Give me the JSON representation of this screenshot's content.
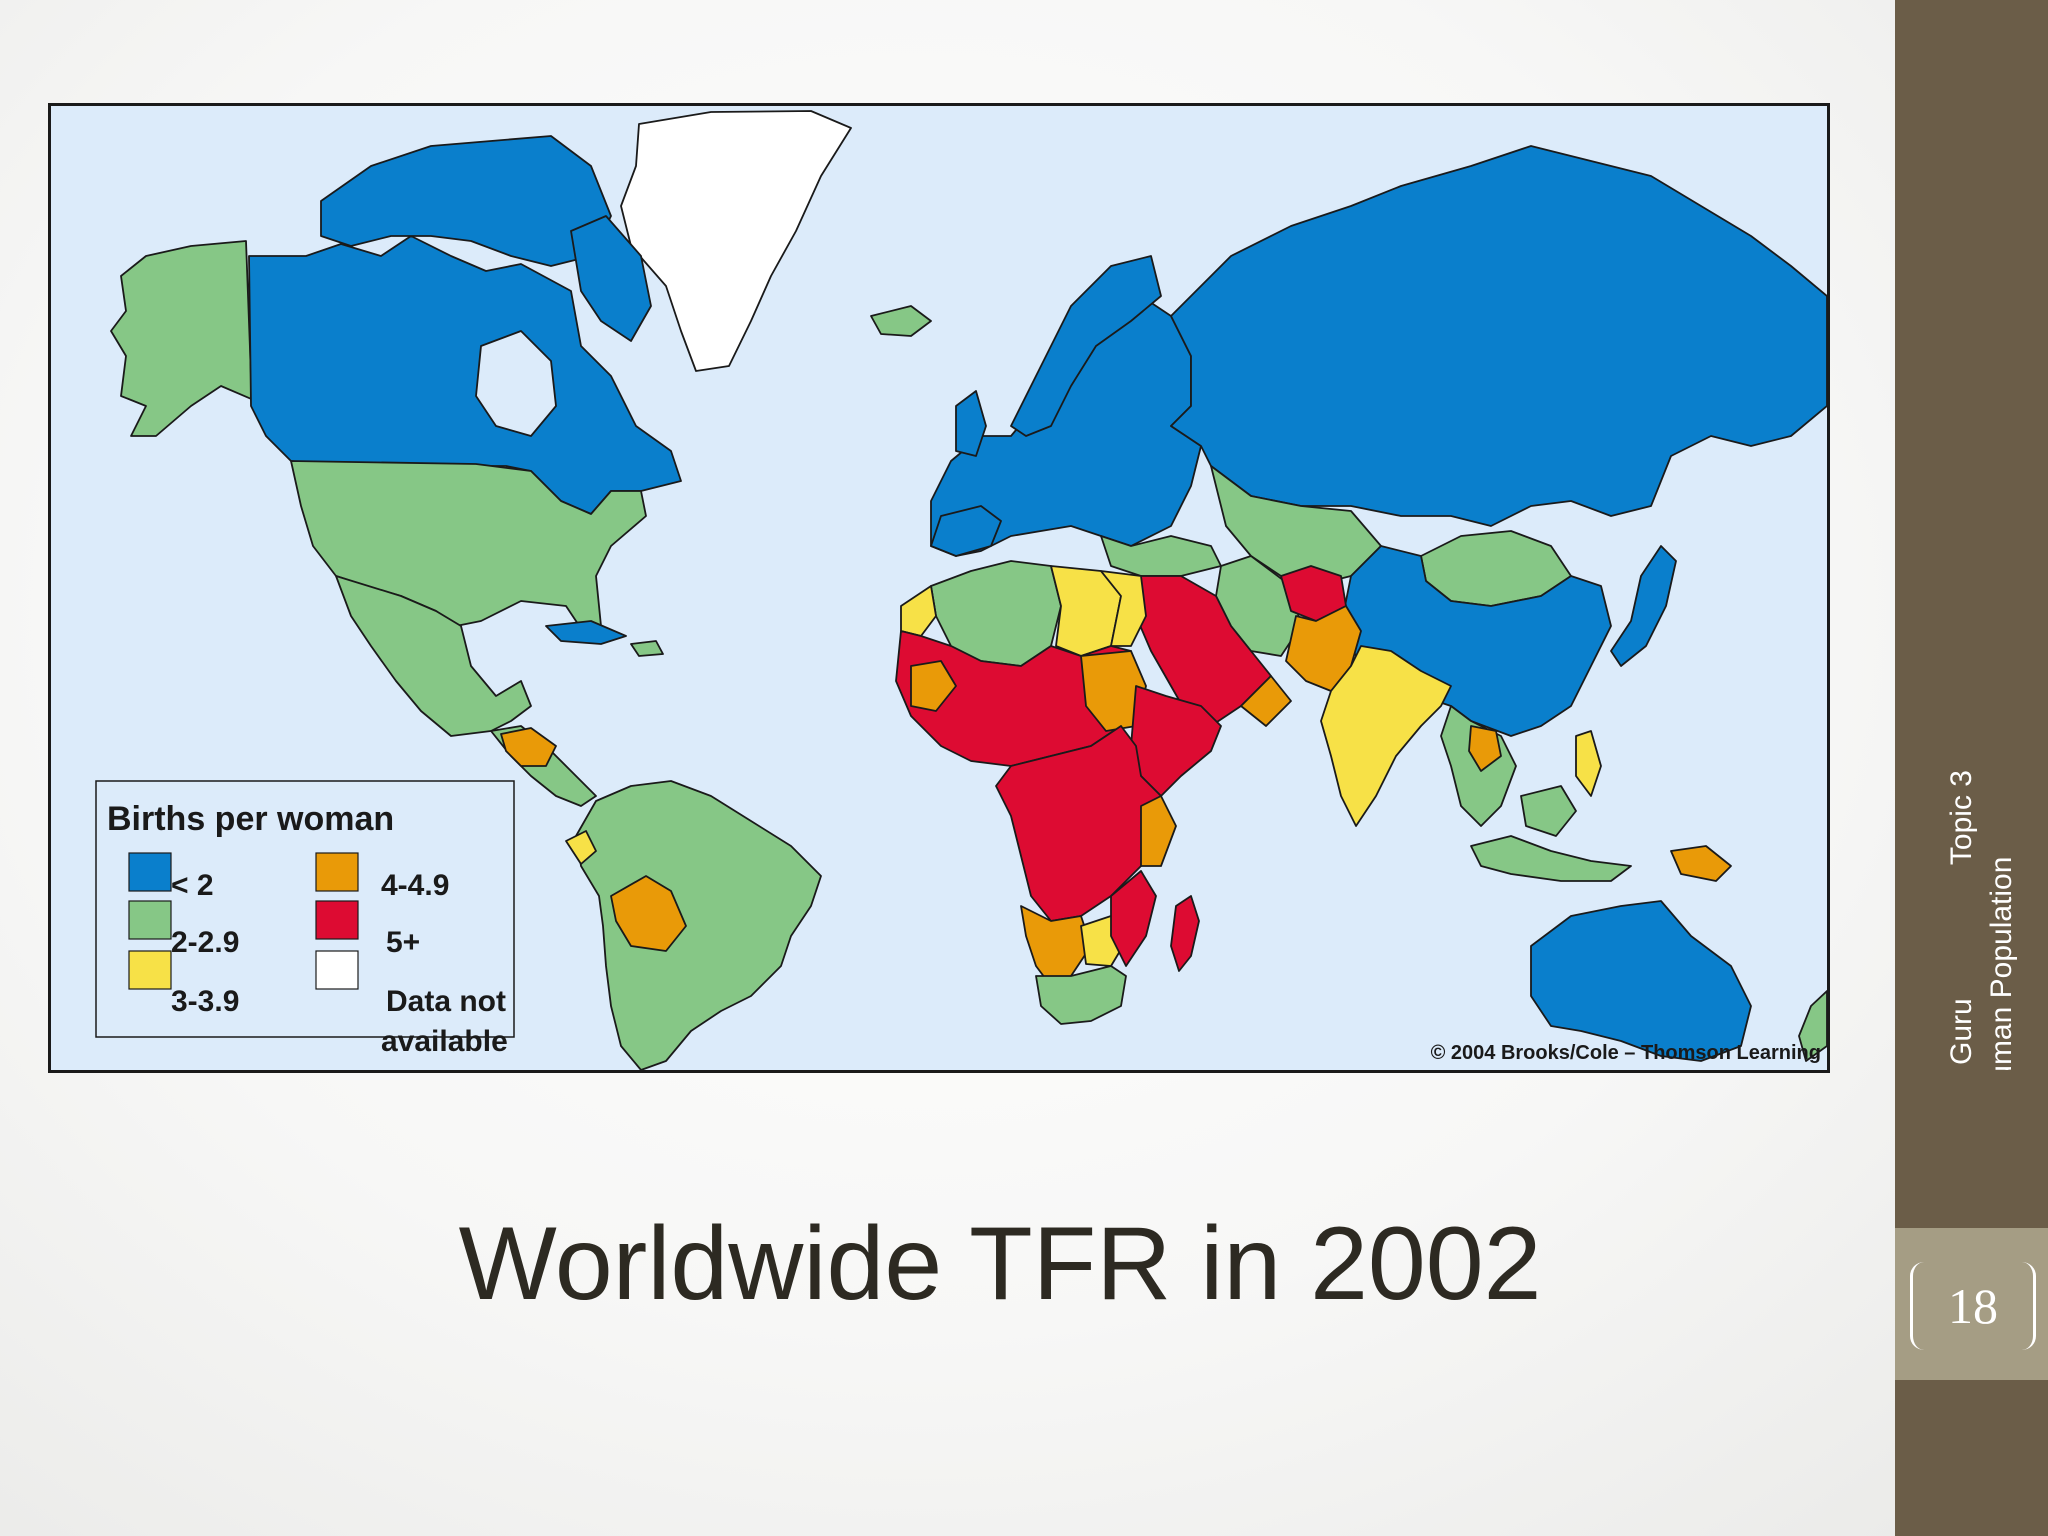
{
  "slide": {
    "title": "Worldwide TFR in 2002",
    "page_number": "18",
    "sidebar_line1": "Topic 3",
    "sidebar_line2": "Human Population",
    "sidebar_line3": "Guru"
  },
  "map": {
    "copyright": "© 2004 Brooks/Cole – Thomson Learning",
    "legend": {
      "title": "Births per woman",
      "items": [
        {
          "label": "< 2",
          "color": "#0a7fcc"
        },
        {
          "label": "2-2.9",
          "color": "#86c786"
        },
        {
          "label": "3-3.9",
          "color": "#f7e147"
        },
        {
          "label": "4-4.9",
          "color": "#e99a08"
        },
        {
          "label": "5+",
          "color": "#dd0b32"
        },
        {
          "label": "Data not available",
          "label_line1": "Data not",
          "label_line2": "available",
          "color": "#ffffff"
        }
      ]
    },
    "colors": {
      "ocean": "#dcebfa",
      "border": "#1a1a1a"
    }
  }
}
